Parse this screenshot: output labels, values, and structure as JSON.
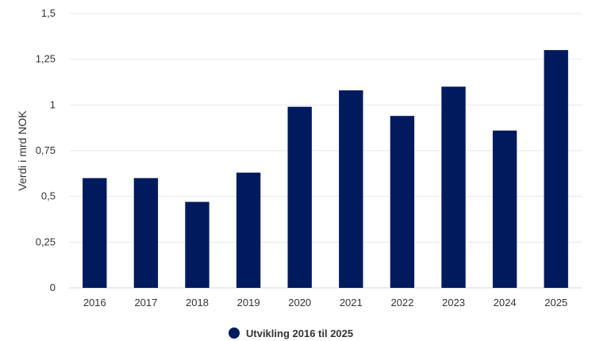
{
  "chart_data": {
    "type": "bar",
    "ylabel": "Verdi i mrd NOK",
    "categories": [
      "2016",
      "2017",
      "2018",
      "2019",
      "2020",
      "2021",
      "2022",
      "2023",
      "2024",
      "2025"
    ],
    "series": [
      {
        "name": "Utvikling 2016 til 2025",
        "values": [
          0.6,
          0.6,
          0.47,
          0.63,
          0.99,
          1.08,
          0.94,
          1.1,
          0.86,
          1.3
        ],
        "color": "#001a5e"
      }
    ],
    "ylim": [
      0,
      1.5
    ],
    "yticks": [
      "0",
      "0,25",
      "0,5",
      "0,75",
      "1",
      "1,25",
      "1,5"
    ],
    "grid": true,
    "legend_position": "bottom"
  },
  "colors": {
    "bar": "#001a5e",
    "grid": "#e6e6e6",
    "baseline": "#ccd6eb",
    "text": "#333333"
  }
}
